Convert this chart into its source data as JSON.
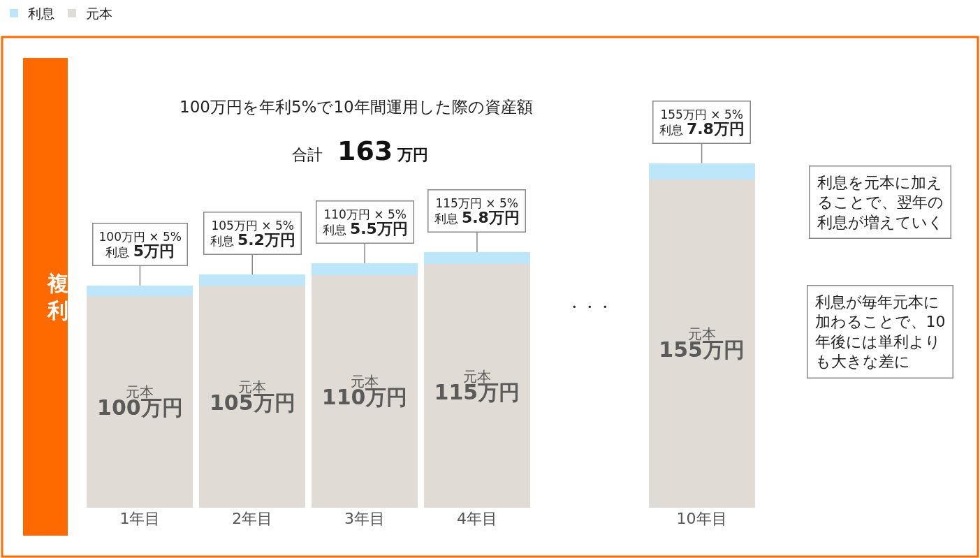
{
  "chart_data": {
    "type": "bar",
    "stacked": true,
    "title": "100万円を年利5%で10年間運用した際の資産額",
    "subtitle": "合計 163 万円",
    "categories": [
      "1年目",
      "2年目",
      "3年目",
      "4年目",
      null,
      "10年目"
    ],
    "series": [
      {
        "name": "元本",
        "color": "#e0dcd5",
        "values": [
          100,
          105,
          110,
          115,
          null,
          155
        ],
        "value_labels": [
          "元本\n100万円",
          "元本\n105万円",
          "元本\n110万円",
          "元本\n115万円",
          null,
          "元本\n155万円"
        ]
      },
      {
        "name": "利息",
        "color": "#bde6fb",
        "values": [
          5,
          5.2,
          5.5,
          5.8,
          null,
          7.8
        ],
        "value_labels": [
          "100万円 × 5%\n利息 5万円",
          "105万円 × 5%\n利息 5.2万円",
          "110万円 × 5%\n利息 5.5万円",
          "115万円 × 5%\n利息 5.8万円",
          null,
          "155万円 × 5%\n利息 7.8万円"
        ]
      }
    ],
    "annotations": [
      "複利",
      "・・・",
      "利息を元本に加えることで、翌年の利息が増えていく",
      "利息が毎年元本に加わることで、10年後には単利よりも大きな差に"
    ],
    "legend": "top left"
  }
}
